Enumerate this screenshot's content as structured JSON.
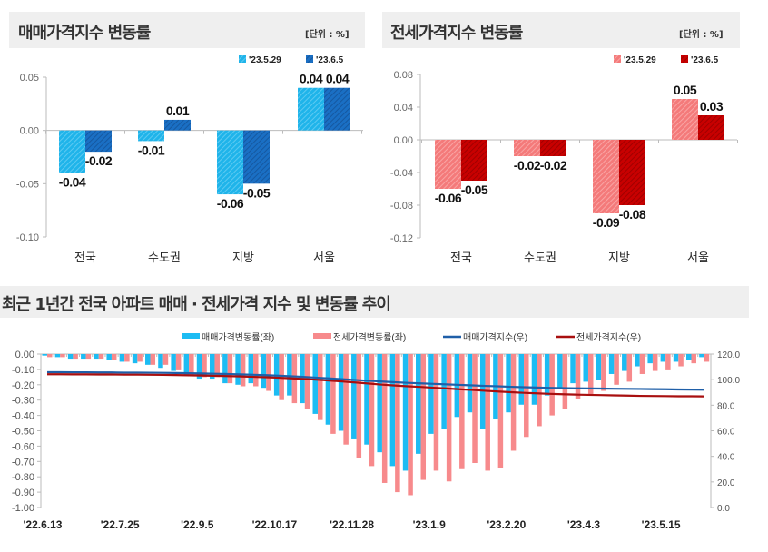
{
  "colors": {
    "sale_prev": "#1fb4ea",
    "sale_curr": "#1a6fc4",
    "jeonse_prev": "#f47a7a",
    "jeonse_curr": "#c00000",
    "sale_rate_bar": "#1dbcf3",
    "jeonse_rate_bar": "#f78a8c",
    "sale_index_line": "#1f5fa8",
    "jeonse_index_line": "#a80f0f",
    "title_bg": "#efefef"
  },
  "chart_data": [
    {
      "type": "bar",
      "title": "매매가격지수 변동률",
      "unit": "[단위 : %]",
      "categories": [
        "전국",
        "수도권",
        "지방",
        "서울"
      ],
      "series": [
        {
          "name": "'23.5.29",
          "values": [
            -0.04,
            -0.01,
            -0.06,
            0.04
          ],
          "labels": [
            "-0.04",
            "-0.01",
            "-0.06",
            "0.04"
          ]
        },
        {
          "name": "'23.6.5",
          "values": [
            -0.02,
            0.01,
            -0.05,
            0.04
          ],
          "labels": [
            "-0.02",
            "0.01",
            "-0.05",
            "0.04"
          ]
        }
      ],
      "ylim": [
        -0.1,
        0.05
      ],
      "yticks": [
        "0.05",
        "0.00",
        "-0.05",
        "-0.10"
      ],
      "ytick_values": [
        0.05,
        0,
        -0.05,
        -0.1
      ],
      "legend": "top-right"
    },
    {
      "type": "bar",
      "title": "전세가격지수 변동률",
      "unit": "[단위 : %]",
      "categories": [
        "전국",
        "수도권",
        "지방",
        "서울"
      ],
      "series": [
        {
          "name": "'23.5.29",
          "values": [
            -0.06,
            -0.02,
            -0.09,
            0.05
          ],
          "labels": [
            "-0.06",
            "-0.02",
            "-0.09",
            "0.05"
          ]
        },
        {
          "name": "'23.6.5",
          "values": [
            -0.05,
            -0.02,
            -0.08,
            0.03
          ],
          "labels": [
            "-0.05",
            "-0.02",
            "-0.08",
            "0.03"
          ]
        }
      ],
      "ylim": [
        -0.12,
        0.08
      ],
      "yticks": [
        "0.08",
        "0.04",
        "0.00",
        "-0.04",
        "-0.08",
        "-0.12"
      ],
      "ytick_values": [
        0.08,
        0.04,
        0,
        -0.04,
        -0.08,
        -0.12
      ],
      "legend": "top-right"
    },
    {
      "type": "bar+line",
      "title": "최근 1년간 전국 아파트 매매 · 전세가격 지수 및 변동률 추이",
      "x_tick_labels": [
        "'22.6.13",
        "'22.7.25",
        "'22.9.5",
        "'22.10.17",
        "'22.11.28",
        "'23.1.9",
        "'23.2.20",
        "'23.4.3",
        "'23.5.15"
      ],
      "x_tick_every_weeks": 6,
      "y_left": {
        "ylim": [
          -1.0,
          0.0
        ],
        "ticks": [
          "0.00",
          "-0.10",
          "-0.20",
          "-0.30",
          "-0.40",
          "-0.50",
          "-0.60",
          "-0.70",
          "-0.80",
          "-0.90",
          "-1.00"
        ]
      },
      "y_right": {
        "ylim": [
          0,
          120
        ],
        "ticks": [
          "120.0",
          "100.0",
          "80.0",
          "60.0",
          "40.0",
          "20.0",
          "0.0"
        ]
      },
      "legend": "top",
      "series": [
        {
          "name": "매매가격변동률(좌)",
          "kind": "bar",
          "axis": "left",
          "values": [
            -0.01,
            -0.02,
            -0.03,
            -0.03,
            -0.03,
            -0.04,
            -0.05,
            -0.06,
            -0.07,
            -0.09,
            -0.11,
            -0.14,
            -0.16,
            -0.16,
            -0.19,
            -0.2,
            -0.19,
            -0.22,
            -0.27,
            -0.27,
            -0.32,
            -0.39,
            -0.46,
            -0.5,
            -0.55,
            -0.59,
            -0.64,
            -0.73,
            -0.76,
            -0.65,
            -0.52,
            -0.49,
            -0.41,
            -0.38,
            -0.49,
            -0.42,
            -0.38,
            -0.33,
            -0.33,
            -0.27,
            -0.22,
            -0.19,
            -0.18,
            -0.17,
            -0.13,
            -0.11,
            -0.08,
            -0.06,
            -0.05,
            -0.05,
            -0.04,
            -0.02
          ]
        },
        {
          "name": "전세가격변동률(좌)",
          "kind": "bar",
          "axis": "left",
          "values": [
            -0.02,
            -0.02,
            -0.03,
            -0.03,
            -0.03,
            -0.04,
            -0.05,
            -0.05,
            -0.07,
            -0.07,
            -0.1,
            -0.14,
            -0.15,
            -0.15,
            -0.19,
            -0.21,
            -0.21,
            -0.24,
            -0.3,
            -0.32,
            -0.36,
            -0.43,
            -0.52,
            -0.59,
            -0.68,
            -0.73,
            -0.84,
            -0.9,
            -0.92,
            -0.82,
            -0.76,
            -0.83,
            -0.75,
            -0.71,
            -0.76,
            -0.74,
            -0.63,
            -0.54,
            -0.47,
            -0.4,
            -0.36,
            -0.29,
            -0.26,
            -0.24,
            -0.2,
            -0.18,
            -0.13,
            -0.11,
            -0.1,
            -0.08,
            -0.06,
            -0.05
          ]
        },
        {
          "name": "매매가격지수(우)",
          "kind": "line",
          "axis": "right",
          "values": [
            105.8,
            105.8,
            105.7,
            105.7,
            105.6,
            105.6,
            105.5,
            105.5,
            105.4,
            105.3,
            105.2,
            105.0,
            104.8,
            104.6,
            104.4,
            104.1,
            103.8,
            103.5,
            103.1,
            102.6,
            102.1,
            101.5,
            100.9,
            100.3,
            99.7,
            99.1,
            98.5,
            98.0,
            97.5,
            97.1,
            96.7,
            96.3,
            95.9,
            95.5,
            95.1,
            94.8,
            94.4,
            94.1,
            93.8,
            93.6,
            93.4,
            93.2,
            93.1,
            93.0,
            92.9,
            92.8,
            92.7,
            92.6,
            92.5,
            92.3,
            92.2,
            92.1
          ]
        },
        {
          "name": "전세가격지수(우)",
          "kind": "line",
          "axis": "right",
          "values": [
            104.2,
            104.2,
            104.1,
            104.1,
            104.0,
            104.0,
            103.9,
            103.9,
            103.8,
            103.7,
            103.6,
            103.4,
            103.2,
            103.0,
            102.8,
            102.5,
            102.2,
            101.9,
            101.5,
            101.0,
            100.5,
            99.9,
            99.2,
            98.5,
            97.7,
            96.9,
            96.1,
            95.4,
            94.8,
            94.3,
            93.7,
            93.1,
            92.5,
            91.9,
            91.3,
            90.7,
            90.2,
            89.7,
            89.3,
            88.9,
            88.6,
            88.3,
            88.1,
            87.9,
            87.7,
            87.5,
            87.3,
            87.2,
            87.1,
            87.0,
            87.0,
            86.9
          ]
        }
      ]
    }
  ]
}
